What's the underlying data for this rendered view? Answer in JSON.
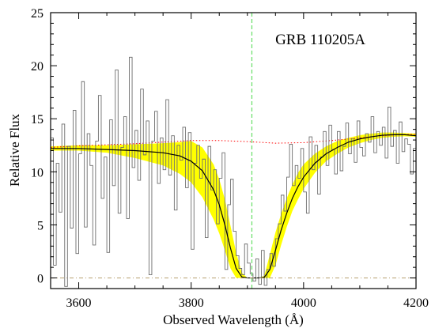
{
  "chart_data": {
    "type": "line",
    "title": "GRB 110205A",
    "xlabel": "Observed Wavelength (Å)",
    "ylabel": "Relative Flux",
    "xlim": [
      3550,
      4200
    ],
    "ylim": [
      -1,
      25
    ],
    "x_ticks": [
      3600,
      3800,
      4000,
      4200
    ],
    "y_ticks": [
      0,
      5,
      10,
      15,
      20,
      25
    ],
    "x_tick_labels": [
      "3600",
      "3800",
      "4000",
      "4200"
    ],
    "y_tick_labels": [
      "0",
      "5",
      "10",
      "15",
      "20",
      "25"
    ],
    "vertical_marker_x": 3908,
    "colors": {
      "spectrum": "#6e6e6e",
      "fit": "#000000",
      "uncertainty_band": "#ffff00",
      "continuum": "#ff0000",
      "marker": "#66dd66",
      "zero_line": "#b8a070"
    },
    "series": [
      {
        "role": "observed_spectrum",
        "style": "step",
        "x": [
          3550,
          3555,
          3560,
          3565,
          3570,
          3575,
          3580,
          3585,
          3590,
          3595,
          3600,
          3605,
          3610,
          3615,
          3620,
          3625,
          3630,
          3635,
          3640,
          3645,
          3650,
          3655,
          3660,
          3665,
          3670,
          3675,
          3680,
          3685,
          3690,
          3695,
          3700,
          3705,
          3710,
          3715,
          3720,
          3725,
          3730,
          3735,
          3740,
          3745,
          3750,
          3755,
          3760,
          3765,
          3770,
          3775,
          3780,
          3785,
          3790,
          3795,
          3800,
          3805,
          3810,
          3815,
          3820,
          3825,
          3830,
          3835,
          3840,
          3845,
          3850,
          3855,
          3860,
          3865,
          3870,
          3875,
          3880,
          3885,
          3890,
          3895,
          3900,
          3905,
          3910,
          3915,
          3920,
          3925,
          3930,
          3935,
          3940,
          3945,
          3950,
          3955,
          3960,
          3965,
          3970,
          3975,
          3980,
          3985,
          3990,
          3995,
          4000,
          4005,
          4010,
          4015,
          4020,
          4025,
          4030,
          4035,
          4040,
          4045,
          4050,
          4055,
          4060,
          4065,
          4070,
          4075,
          4080,
          4085,
          4090,
          4095,
          4100,
          4105,
          4110,
          4115,
          4120,
          4125,
          4130,
          4135,
          4140,
          4145,
          4150,
          4155,
          4160,
          4165,
          4170,
          4175,
          4180,
          4185,
          4190,
          4195,
          4200
        ],
        "values": [
          13.2,
          1.2,
          10.8,
          6.2,
          14.5,
          -0.8,
          12.4,
          4.7,
          15.8,
          2.3,
          11.7,
          18.5,
          4.8,
          13.6,
          10.6,
          3.1,
          12.9,
          17.2,
          7.5,
          11.4,
          2.4,
          14.9,
          8.7,
          19.6,
          6.1,
          12.3,
          15.2,
          5.6,
          20.8,
          10.4,
          13.9,
          9.2,
          17.8,
          11.6,
          14.8,
          0.3,
          12.9,
          15.7,
          8.9,
          13.2,
          10.2,
          16.8,
          9.7,
          13.4,
          6.4,
          12.5,
          11.1,
          14.2,
          8.5,
          13.7,
          2.7,
          10.8,
          12.5,
          9.4,
          11.2,
          3.8,
          12.4,
          8.3,
          10.2,
          5.1,
          9.4,
          11.8,
          0.8,
          6.9,
          9.3,
          4.4,
          2.1,
          0.9,
          0.3,
          3.2,
          1.4,
          0.4,
          -0.3,
          1.8,
          -0.6,
          2.6,
          -0.7,
          0.8,
          2.3,
          1.1,
          3.7,
          5.1,
          7.8,
          6.3,
          9.5,
          12.6,
          8.7,
          10.6,
          9.4,
          12.2,
          8.1,
          6.1,
          13.3,
          10.2,
          12.5,
          7.9,
          11.4,
          13.8,
          10.6,
          14.4,
          12.1,
          9.8,
          13.8,
          10.1,
          12.4,
          14.6,
          11.7,
          13.1,
          10.9,
          14.8,
          12.3,
          11.5,
          13.6,
          12.8,
          15.2,
          11.8,
          13.8,
          12.5,
          14.2,
          11.3,
          16.1,
          12.4,
          13.9,
          10.8,
          14.7,
          11.9,
          13.1,
          12.6,
          9.8,
          12.2,
          13.2
        ]
      },
      {
        "role": "model_fit",
        "style": "line",
        "x": [
          3550,
          3600,
          3650,
          3700,
          3750,
          3780,
          3800,
          3820,
          3840,
          3850,
          3860,
          3870,
          3880,
          3890,
          3900,
          3910,
          3920,
          3930,
          3940,
          3950,
          3960,
          3970,
          3980,
          3990,
          4000,
          4020,
          4040,
          4060,
          4080,
          4100,
          4120,
          4140,
          4160,
          4180,
          4200
        ],
        "values": [
          12.2,
          12.2,
          12.1,
          12.0,
          11.8,
          11.5,
          11.0,
          10.1,
          8.3,
          6.9,
          5.0,
          2.8,
          0.9,
          0.1,
          0.0,
          0.0,
          0.0,
          0.05,
          0.8,
          2.6,
          4.5,
          6.1,
          7.5,
          8.6,
          9.5,
          10.8,
          11.7,
          12.3,
          12.8,
          13.1,
          13.3,
          13.45,
          13.5,
          13.5,
          13.4
        ]
      },
      {
        "role": "fit_uncertainty_band",
        "style": "band",
        "x": [
          3550,
          3600,
          3650,
          3700,
          3750,
          3780,
          3800,
          3820,
          3840,
          3850,
          3860,
          3870,
          3880,
          3890,
          3900,
          3910,
          3920,
          3930,
          3940,
          3950,
          3960,
          3970,
          3980,
          3990,
          4000,
          4020,
          4040,
          4060,
          4080,
          4100,
          4120,
          4140,
          4160,
          4180,
          4200
        ],
        "lower": [
          12.0,
          12.0,
          11.8,
          11.3,
          10.6,
          9.8,
          9.0,
          7.6,
          5.5,
          4.2,
          2.6,
          0.9,
          0.0,
          0.0,
          0.0,
          0.0,
          0.0,
          0.0,
          0.0,
          1.2,
          3.1,
          4.8,
          6.3,
          7.4,
          8.4,
          9.9,
          11.0,
          11.7,
          12.3,
          12.7,
          13.0,
          13.2,
          13.3,
          13.35,
          13.3
        ],
        "upper": [
          12.4,
          12.5,
          12.5,
          12.6,
          12.7,
          12.8,
          12.9,
          12.3,
          10.7,
          9.3,
          7.4,
          4.9,
          2.4,
          0.5,
          0.0,
          0.0,
          0.0,
          0.2,
          2.2,
          4.3,
          6.0,
          7.5,
          8.8,
          9.9,
          10.7,
          11.7,
          12.4,
          12.9,
          13.2,
          13.45,
          13.6,
          13.7,
          13.7,
          13.65,
          13.6
        ]
      },
      {
        "role": "continuum",
        "style": "dotted",
        "x": [
          3550,
          3600,
          3650,
          3700,
          3750,
          3800,
          3850,
          3900,
          3950,
          4000,
          4050,
          4100,
          4150,
          4200
        ],
        "values": [
          12.3,
          12.45,
          12.55,
          12.65,
          12.8,
          12.95,
          12.95,
          12.85,
          12.7,
          12.75,
          12.95,
          13.2,
          13.45,
          13.55
        ]
      }
    ]
  }
}
